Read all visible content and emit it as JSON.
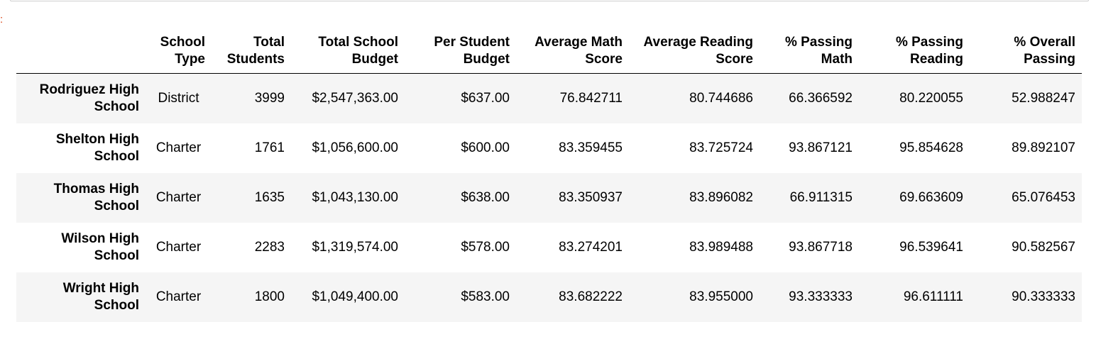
{
  "prompt_mark": ":",
  "table": {
    "columns": [
      "",
      "School\nType",
      "Total\nStudents",
      "Total School\nBudget",
      "Per Student\nBudget",
      "Average Math\nScore",
      "Average Reading\nScore",
      "% Passing\nMath",
      "% Passing\nReading",
      "% Overall\nPassing"
    ],
    "rows": [
      {
        "school": "Rodriguez High\nSchool",
        "school_type": "District",
        "total_students": "3999",
        "total_budget": "$2,547,363.00",
        "per_student_budget": "$637.00",
        "avg_math": "76.842711",
        "avg_reading": "80.744686",
        "pct_math": "66.366592",
        "pct_reading": "80.220055",
        "pct_overall": "52.988247"
      },
      {
        "school": "Shelton High\nSchool",
        "school_type": "Charter",
        "total_students": "1761",
        "total_budget": "$1,056,600.00",
        "per_student_budget": "$600.00",
        "avg_math": "83.359455",
        "avg_reading": "83.725724",
        "pct_math": "93.867121",
        "pct_reading": "95.854628",
        "pct_overall": "89.892107"
      },
      {
        "school": "Thomas High\nSchool",
        "school_type": "Charter",
        "total_students": "1635",
        "total_budget": "$1,043,130.00",
        "per_student_budget": "$638.00",
        "avg_math": "83.350937",
        "avg_reading": "83.896082",
        "pct_math": "66.911315",
        "pct_reading": "69.663609",
        "pct_overall": "65.076453"
      },
      {
        "school": "Wilson High\nSchool",
        "school_type": "Charter",
        "total_students": "2283",
        "total_budget": "$1,319,574.00",
        "per_student_budget": "$578.00",
        "avg_math": "83.274201",
        "avg_reading": "83.989488",
        "pct_math": "93.867718",
        "pct_reading": "96.539641",
        "pct_overall": "90.582567"
      },
      {
        "school": "Wright High\nSchool",
        "school_type": "Charter",
        "total_students": "1800",
        "total_budget": "$1,049,400.00",
        "per_student_budget": "$583.00",
        "avg_math": "83.682222",
        "avg_reading": "83.955000",
        "pct_math": "93.333333",
        "pct_reading": "96.611111",
        "pct_overall": "90.333333"
      }
    ]
  }
}
